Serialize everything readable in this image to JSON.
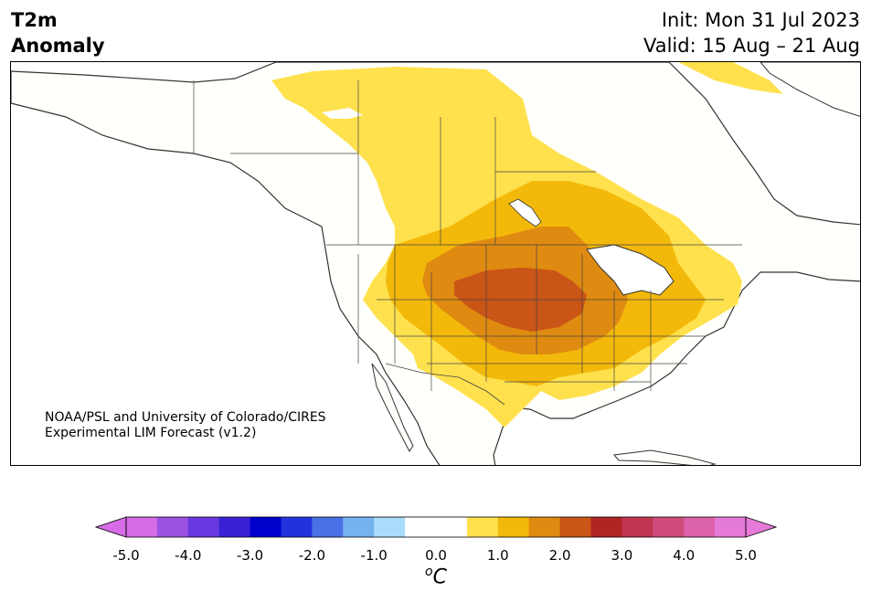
{
  "title": {
    "line1": "T2m",
    "line2": "Anomaly"
  },
  "forecast": {
    "init": "Init: Mon 31 Jul 2023",
    "valid": "Valid: 15 Aug – 21 Aug"
  },
  "credit": {
    "line1": "NOAA/PSL and University of Colorado/CIRES",
    "line2": "Experimental LIM Forecast (v1.2)"
  },
  "colorbar": {
    "unit_superscript": "o",
    "unit_base": "C",
    "ticks": [
      "-5.0",
      "-4.0",
      "-3.0",
      "-2.0",
      "-1.0",
      "0.0",
      "1.0",
      "2.0",
      "3.0",
      "4.0",
      "5.0"
    ],
    "colors": [
      "#d66ce6",
      "#9b52e0",
      "#6a38e0",
      "#3a20d4",
      "#0000cc",
      "#2233dd",
      "#4a72e6",
      "#76b2f0",
      "#aadbfa",
      "#ffffff",
      "#ffffff",
      "#ffe14d",
      "#f3b90a",
      "#df8a10",
      "#c95516",
      "#b02424",
      "#c03650",
      "#d04b7c",
      "#dc62aa",
      "#e67ad8"
    ],
    "under_color": "#d66ce6",
    "over_color": "#e67ad8"
  },
  "map": {
    "anomaly_colors": {
      "plus_0_5_to_1": "#ffe14d",
      "plus_1_to_1_5": "#f3b90a",
      "plus_1_5_to_2": "#df8a10",
      "plus_2_to_2_5": "#c95516"
    },
    "land_color": "#fffffb",
    "coast_color": "#333333"
  }
}
